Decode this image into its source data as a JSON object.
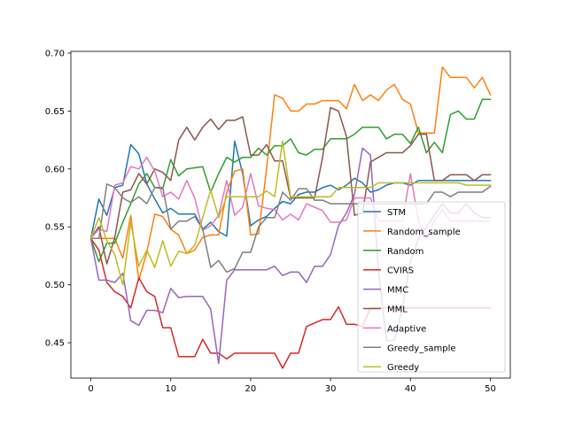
{
  "chart_data": {
    "type": "line",
    "title": "",
    "xlabel": "",
    "ylabel": "",
    "xlim": [
      -2.5,
      52.5
    ],
    "ylim": [
      0.4195,
      0.7015
    ],
    "xticks": [
      0,
      10,
      20,
      30,
      40,
      50
    ],
    "xtick_labels": [
      "0",
      "10",
      "20",
      "30",
      "40",
      "50"
    ],
    "yticks": [
      0.45,
      0.5,
      0.55,
      0.6,
      0.65,
      0.7
    ],
    "ytick_labels": [
      "0.45",
      "0.50",
      "0.55",
      "0.60",
      "0.65",
      "0.70"
    ],
    "grid": false,
    "legend_position": "lower-right",
    "x": [
      0,
      1,
      2,
      3,
      4,
      5,
      6,
      7,
      8,
      9,
      10,
      11,
      12,
      13,
      14,
      15,
      16,
      17,
      18,
      19,
      20,
      21,
      22,
      23,
      24,
      25,
      26,
      27,
      28,
      29,
      30,
      31,
      32,
      33,
      34,
      35,
      36,
      37,
      38,
      39,
      40,
      41,
      42,
      43,
      44,
      45,
      46,
      47,
      48,
      49,
      50
    ],
    "series": [
      {
        "name": "STM",
        "color": "#1f77b4",
        "values": [
          0.54,
          0.574,
          0.56,
          0.584,
          0.586,
          0.621,
          0.613,
          0.587,
          0.574,
          0.562,
          0.566,
          0.561,
          0.561,
          0.561,
          0.548,
          0.554,
          0.546,
          0.542,
          0.624,
          0.596,
          0.551,
          0.556,
          0.559,
          0.566,
          0.572,
          0.57,
          0.578,
          0.58,
          0.58,
          0.584,
          0.586,
          0.582,
          0.586,
          0.592,
          0.588,
          0.58,
          0.582,
          0.586,
          0.588,
          0.588,
          0.586,
          0.59,
          0.59,
          0.59,
          0.59,
          0.59,
          0.59,
          0.59,
          0.59,
          0.59,
          0.59
        ]
      },
      {
        "name": "Random_sample",
        "color": "#ff7f0e",
        "values": [
          0.54,
          0.54,
          0.54,
          0.54,
          0.523,
          0.56,
          0.504,
          0.528,
          0.561,
          0.559,
          0.548,
          0.543,
          0.527,
          0.53,
          0.541,
          0.543,
          0.543,
          0.58,
          0.598,
          0.6,
          0.543,
          0.544,
          0.6,
          0.664,
          0.661,
          0.65,
          0.65,
          0.656,
          0.656,
          0.659,
          0.659,
          0.659,
          0.652,
          0.673,
          0.659,
          0.664,
          0.659,
          0.668,
          0.673,
          0.66,
          0.656,
          0.631,
          0.631,
          0.631,
          0.688,
          0.679,
          0.679,
          0.679,
          0.67,
          0.679,
          0.664
        ]
      },
      {
        "name": "Random",
        "color": "#2ca02c",
        "values": [
          0.54,
          0.52,
          0.536,
          0.536,
          0.554,
          0.57,
          0.587,
          0.596,
          0.584,
          0.583,
          0.608,
          0.594,
          0.6,
          0.601,
          0.602,
          0.58,
          0.596,
          0.61,
          0.606,
          0.61,
          0.61,
          0.618,
          0.612,
          0.62,
          0.62,
          0.626,
          0.614,
          0.612,
          0.617,
          0.617,
          0.626,
          0.626,
          0.626,
          0.63,
          0.636,
          0.636,
          0.636,
          0.626,
          0.63,
          0.63,
          0.622,
          0.636,
          0.614,
          0.623,
          0.614,
          0.647,
          0.65,
          0.643,
          0.643,
          0.66,
          0.66
        ]
      },
      {
        "name": "CVIRS",
        "color": "#d62728",
        "values": [
          0.54,
          0.53,
          0.502,
          0.494,
          0.49,
          0.48,
          0.506,
          0.494,
          0.49,
          0.463,
          0.463,
          0.438,
          0.438,
          0.438,
          0.453,
          0.441,
          0.441,
          0.436,
          0.441,
          0.441,
          0.441,
          0.441,
          0.441,
          0.441,
          0.428,
          0.441,
          0.441,
          0.464,
          0.467,
          0.47,
          0.47,
          0.481,
          0.466,
          0.466,
          0.464,
          0.48,
          0.48,
          0.48,
          0.48,
          0.48,
          0.48,
          0.48,
          0.48,
          0.48,
          0.48,
          0.48,
          0.48,
          0.48,
          0.48,
          0.48,
          0.48
        ]
      },
      {
        "name": "MMC",
        "color": "#9467bd",
        "values": [
          0.54,
          0.504,
          0.504,
          0.502,
          0.51,
          0.469,
          0.465,
          0.478,
          0.478,
          0.476,
          0.497,
          0.489,
          0.49,
          0.49,
          0.49,
          0.479,
          0.432,
          0.504,
          0.513,
          0.513,
          0.513,
          0.513,
          0.513,
          0.516,
          0.508,
          0.511,
          0.511,
          0.502,
          0.516,
          0.516,
          0.526,
          0.551,
          0.562,
          0.578,
          0.618,
          0.612,
          0.512,
          0.452,
          0.452,
          0.48,
          0.52,
          0.54,
          0.55,
          0.56,
          0.57,
          0.562,
          0.562,
          0.57,
          0.562,
          0.558,
          0.558
        ]
      },
      {
        "name": "MML",
        "color": "#8c564b",
        "values": [
          0.54,
          0.55,
          0.518,
          0.541,
          0.58,
          0.582,
          0.596,
          0.587,
          0.6,
          0.597,
          0.59,
          0.625,
          0.636,
          0.625,
          0.636,
          0.643,
          0.634,
          0.642,
          0.642,
          0.645,
          0.612,
          0.612,
          0.621,
          0.607,
          0.607,
          0.575,
          0.575,
          0.575,
          0.575,
          0.61,
          0.653,
          0.65,
          0.628,
          0.56,
          0.562,
          0.606,
          0.61,
          0.614,
          0.614,
          0.614,
          0.62,
          0.63,
          0.63,
          0.59,
          0.59,
          0.595,
          0.595,
          0.595,
          0.59,
          0.595,
          0.595
        ]
      },
      {
        "name": "Adaptive",
        "color": "#e377c2",
        "values": [
          0.54,
          0.548,
          0.546,
          0.586,
          0.588,
          0.602,
          0.6,
          0.61,
          0.598,
          0.576,
          0.58,
          0.574,
          0.59,
          0.575,
          0.547,
          0.551,
          0.56,
          0.59,
          0.56,
          0.567,
          0.596,
          0.568,
          0.566,
          0.565,
          0.556,
          0.561,
          0.556,
          0.57,
          0.567,
          0.564,
          0.554,
          0.554,
          0.556,
          0.575,
          0.575,
          0.575,
          0.555,
          0.555,
          0.555,
          0.555,
          0.596,
          0.555,
          0.54,
          0.555,
          0.565,
          0.555,
          0.555,
          0.555,
          0.555,
          0.555,
          0.555
        ]
      },
      {
        "name": "Greedy_sample",
        "color": "#7f7f7f",
        "values": [
          0.54,
          0.54,
          0.587,
          0.584,
          0.575,
          0.571,
          0.576,
          0.57,
          0.584,
          0.584,
          0.548,
          0.555,
          0.555,
          0.559,
          0.548,
          0.515,
          0.521,
          0.511,
          0.514,
          0.528,
          0.528,
          0.55,
          0.558,
          0.558,
          0.58,
          0.573,
          0.583,
          0.583,
          0.573,
          0.573,
          0.57,
          0.57,
          0.57,
          0.57,
          0.57,
          0.57,
          0.57,
          0.57,
          0.57,
          0.57,
          0.57,
          0.57,
          0.57,
          0.58,
          0.58,
          0.576,
          0.58,
          0.58,
          0.58,
          0.58,
          0.585
        ]
      },
      {
        "name": "Greedy",
        "color": "#bcbd22",
        "values": [
          0.54,
          0.558,
          0.538,
          0.526,
          0.5,
          0.554,
          0.516,
          0.53,
          0.515,
          0.538,
          0.516,
          0.529,
          0.527,
          0.534,
          0.558,
          0.582,
          0.558,
          0.576,
          0.576,
          0.576,
          0.576,
          0.576,
          0.581,
          0.576,
          0.624,
          0.576,
          0.576,
          0.576,
          0.576,
          0.576,
          0.576,
          0.584,
          0.584,
          0.584,
          0.584,
          0.584,
          0.588,
          0.588,
          0.588,
          0.588,
          0.588,
          0.588,
          0.588,
          0.588,
          0.588,
          0.588,
          0.588,
          0.586,
          0.586,
          0.586,
          0.586
        ]
      }
    ]
  }
}
